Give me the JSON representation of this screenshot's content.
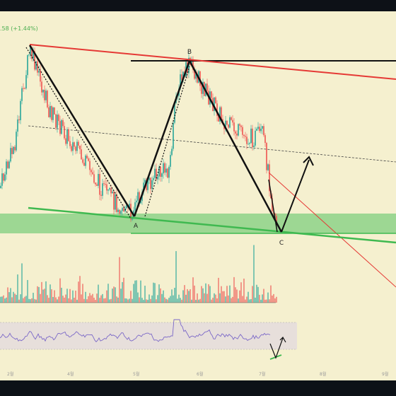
{
  "header": {
    "price_change": ".58 (+1.44%)"
  },
  "points": {
    "a": "A",
    "b": "B",
    "c": "C"
  },
  "date_axis": [
    "2월",
    "4월",
    "5월",
    "6월",
    "7월",
    "8월",
    "9월"
  ],
  "colors": {
    "background": "#f5f0cf",
    "frame": "#0d1117",
    "candle_up": "#26a69a",
    "candle_down": "#ef5350",
    "red_trendline": "#e53935",
    "support_zone": "#7fcf7f",
    "green_trendline": "#3fb950",
    "rsi_line": "#7b68c8"
  },
  "icons": [
    "arrow-up-icon"
  ]
}
